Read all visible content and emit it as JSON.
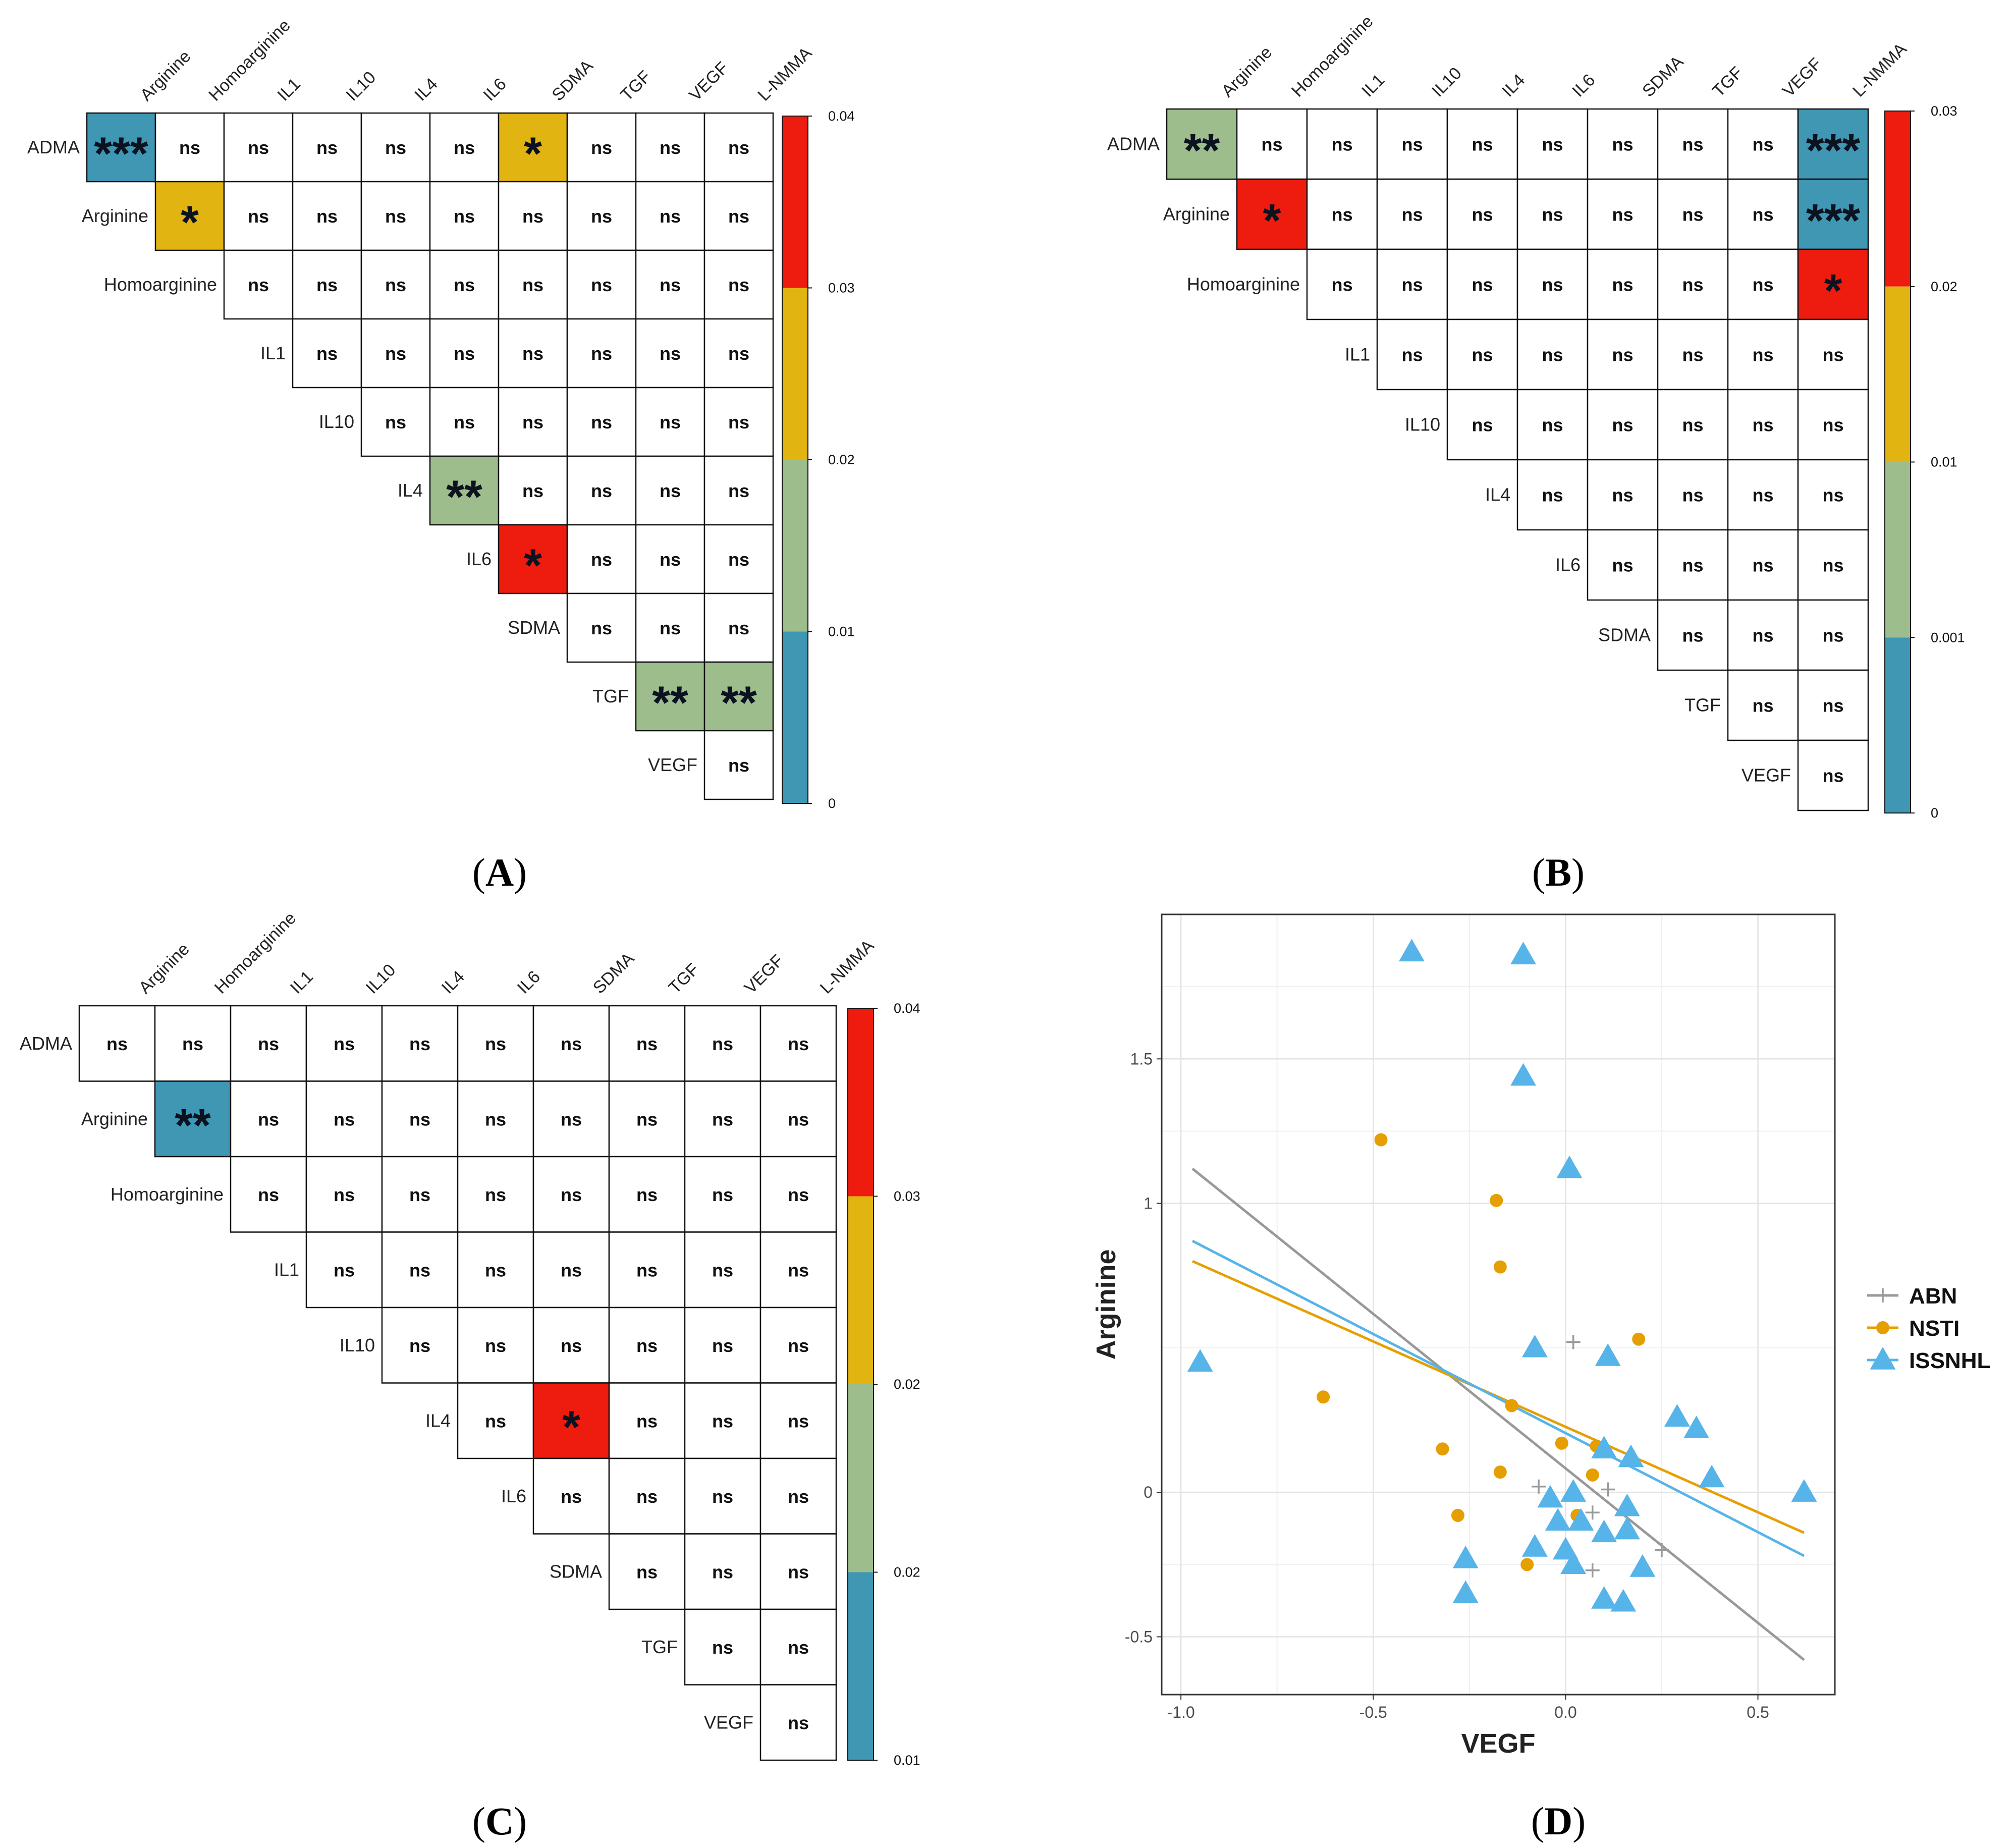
{
  "colors": {
    "teal": "#3f97b4",
    "green": "#9ebd8d",
    "yellow": "#e2b411",
    "red": "#ee1c0f",
    "abn": "#999999",
    "nsti": "#e69f00",
    "issnhl": "#56b4e9"
  },
  "chart_data": [
    {
      "type": "heatmap",
      "panel_label": "A",
      "columns": [
        "Arginine",
        "Homoarginine",
        "IL1",
        "IL10",
        "IL4",
        "IL6",
        "SDMA",
        "TGF",
        "VEGF",
        "L-NMMA"
      ],
      "rows": [
        "ADMA",
        "Arginine",
        "Homoarginine",
        "IL1",
        "IL10",
        "IL4",
        "IL6",
        "SDMA",
        "TGF",
        "VEGF"
      ],
      "cells": [
        [
          "***",
          "ns",
          "ns",
          "ns",
          "ns",
          "ns",
          "*",
          "ns",
          "ns",
          "ns"
        ],
        [
          "*",
          "ns",
          "ns",
          "ns",
          "ns",
          "ns",
          "ns",
          "ns",
          "ns"
        ],
        [
          "ns",
          "ns",
          "ns",
          "ns",
          "ns",
          "ns",
          "ns",
          "ns"
        ],
        [
          "ns",
          "ns",
          "ns",
          "ns",
          "ns",
          "ns",
          "ns"
        ],
        [
          "ns",
          "ns",
          "ns",
          "ns",
          "ns",
          "ns"
        ],
        [
          "**",
          "ns",
          "ns",
          "ns",
          "ns"
        ],
        [
          "*",
          "ns",
          "ns",
          "ns"
        ],
        [
          "ns",
          "ns",
          "ns"
        ],
        [
          "**",
          "**"
        ],
        [
          "ns"
        ]
      ],
      "fills": [
        [
          "teal",
          "",
          "",
          "",
          "",
          "",
          "yellow",
          "",
          "",
          ""
        ],
        [
          "yellow",
          "",
          "",
          "",
          "",
          "",
          "",
          "",
          ""
        ],
        [
          "",
          "",
          "",
          "",
          "",
          "",
          "",
          ""
        ],
        [
          "",
          "",
          "",
          "",
          "",
          "",
          ""
        ],
        [
          "",
          "",
          "",
          "",
          "",
          ""
        ],
        [
          "green",
          "",
          "",
          "",
          ""
        ],
        [
          "red",
          "",
          "",
          ""
        ],
        [
          "",
          "",
          ""
        ],
        [
          "green",
          "green"
        ],
        [
          ""
        ]
      ],
      "colorbar": {
        "ticks": [
          "0.04",
          "0.03",
          "0.02",
          "0.01",
          "0"
        ],
        "bands": [
          "red",
          "yellow",
          "green",
          "teal"
        ]
      }
    },
    {
      "type": "heatmap",
      "panel_label": "B",
      "columns": [
        "Arginine",
        "Homoarginine",
        "IL1",
        "IL10",
        "IL4",
        "IL6",
        "SDMA",
        "TGF",
        "VEGF",
        "L-NMMA"
      ],
      "rows": [
        "ADMA",
        "Arginine",
        "Homoarginine",
        "IL1",
        "IL10",
        "IL4",
        "IL6",
        "SDMA",
        "TGF",
        "VEGF"
      ],
      "cells": [
        [
          "**",
          "ns",
          "ns",
          "ns",
          "ns",
          "ns",
          "ns",
          "ns",
          "ns",
          "***"
        ],
        [
          "*",
          "ns",
          "ns",
          "ns",
          "ns",
          "ns",
          "ns",
          "ns",
          "***"
        ],
        [
          "ns",
          "ns",
          "ns",
          "ns",
          "ns",
          "ns",
          "ns",
          "*"
        ],
        [
          "ns",
          "ns",
          "ns",
          "ns",
          "ns",
          "ns",
          "ns"
        ],
        [
          "ns",
          "ns",
          "ns",
          "ns",
          "ns",
          "ns"
        ],
        [
          "ns",
          "ns",
          "ns",
          "ns",
          "ns"
        ],
        [
          "ns",
          "ns",
          "ns",
          "ns"
        ],
        [
          "ns",
          "ns",
          "ns"
        ],
        [
          "ns",
          "ns"
        ],
        [
          "ns"
        ]
      ],
      "fills": [
        [
          "green",
          "",
          "",
          "",
          "",
          "",
          "",
          "",
          "",
          "teal"
        ],
        [
          "red",
          "",
          "",
          "",
          "",
          "",
          "",
          "",
          "teal"
        ],
        [
          "",
          "",
          "",
          "",
          "",
          "",
          "",
          "red"
        ],
        [
          "",
          "",
          "",
          "",
          "",
          "",
          ""
        ],
        [
          "",
          "",
          "",
          "",
          "",
          ""
        ],
        [
          "",
          "",
          "",
          "",
          ""
        ],
        [
          "",
          "",
          "",
          ""
        ],
        [
          "",
          "",
          ""
        ],
        [
          "",
          ""
        ],
        [
          ""
        ]
      ],
      "colorbar": {
        "ticks": [
          "0.03",
          "0.02",
          "0.01",
          "0.001",
          "0"
        ],
        "bands": [
          "red",
          "yellow",
          "green",
          "teal"
        ]
      }
    },
    {
      "type": "heatmap",
      "panel_label": "C",
      "columns": [
        "Arginine",
        "Homoarginine",
        "IL1",
        "IL10",
        "IL4",
        "IL6",
        "SDMA",
        "TGF",
        "VEGF",
        "L-NMMA"
      ],
      "rows": [
        "ADMA",
        "Arginine",
        "Homoarginine",
        "IL1",
        "IL10",
        "IL4",
        "IL6",
        "SDMA",
        "TGF",
        "VEGF"
      ],
      "cells": [
        [
          "ns",
          "ns",
          "ns",
          "ns",
          "ns",
          "ns",
          "ns",
          "ns",
          "ns",
          "ns"
        ],
        [
          "**",
          "ns",
          "ns",
          "ns",
          "ns",
          "ns",
          "ns",
          "ns",
          "ns"
        ],
        [
          "ns",
          "ns",
          "ns",
          "ns",
          "ns",
          "ns",
          "ns",
          "ns"
        ],
        [
          "ns",
          "ns",
          "ns",
          "ns",
          "ns",
          "ns",
          "ns"
        ],
        [
          "ns",
          "ns",
          "ns",
          "ns",
          "ns",
          "ns"
        ],
        [
          "ns",
          "*",
          "ns",
          "ns",
          "ns"
        ],
        [
          "ns",
          "ns",
          "ns",
          "ns"
        ],
        [
          "ns",
          "ns",
          "ns"
        ],
        [
          "ns",
          "ns"
        ],
        [
          "ns"
        ]
      ],
      "fills": [
        [
          "",
          "",
          "",
          "",
          "",
          "",
          "",
          "",
          "",
          ""
        ],
        [
          "teal",
          "",
          "",
          "",
          "",
          "",
          "",
          "",
          ""
        ],
        [
          "",
          "",
          "",
          "",
          "",
          "",
          "",
          ""
        ],
        [
          "",
          "",
          "",
          "",
          "",
          "",
          ""
        ],
        [
          "",
          "",
          "",
          "",
          "",
          ""
        ],
        [
          "",
          "red",
          "",
          "",
          ""
        ],
        [
          "",
          "",
          "",
          ""
        ],
        [
          "",
          "",
          ""
        ],
        [
          "",
          ""
        ],
        [
          ""
        ]
      ],
      "colorbar": {
        "ticks": [
          "0.04",
          "0.03",
          "0.02",
          "0.02",
          "0.01"
        ],
        "bands": [
          "red",
          "yellow",
          "green",
          "teal"
        ]
      }
    },
    {
      "type": "scatter",
      "panel_label": "D",
      "xlabel": "VEGF",
      "ylabel": "Arginine",
      "xlim": [
        -1.05,
        0.7
      ],
      "ylim": [
        -0.7,
        2.0
      ],
      "x_ticks": [
        "-1.0",
        "-0.5",
        "0.0",
        "0.5"
      ],
      "x_tick_values": [
        -1.0,
        -0.5,
        0.0,
        0.5
      ],
      "y_ticks": [
        "-0.5",
        "0",
        "1",
        "1.5"
      ],
      "y_tick_values": [
        -0.5,
        0,
        1,
        1.5
      ],
      "grid": true,
      "legend": {
        "position": "right",
        "entries": [
          "ABN",
          "NSTI",
          "ISSNHL"
        ]
      },
      "series": [
        {
          "name": "ABN",
          "marker": "plus",
          "color": "abn",
          "points": [
            [
              0.02,
              0.52
            ],
            [
              0.11,
              0.01
            ],
            [
              0.07,
              -0.07
            ],
            [
              -0.07,
              0.02
            ],
            [
              0.07,
              -0.27
            ],
            [
              0.25,
              -0.2
            ]
          ],
          "fit": [
            [
              -0.97,
              1.12
            ],
            [
              0.62,
              -0.58
            ]
          ]
        },
        {
          "name": "NSTI",
          "marker": "circle",
          "color": "nsti",
          "points": [
            [
              -0.48,
              1.22
            ],
            [
              -0.18,
              1.01
            ],
            [
              -0.17,
              0.78
            ],
            [
              0.19,
              0.53
            ],
            [
              -0.63,
              0.33
            ],
            [
              -0.32,
              0.15
            ],
            [
              -0.28,
              -0.08
            ],
            [
              -0.17,
              0.07
            ],
            [
              -0.14,
              0.3
            ],
            [
              -0.01,
              0.17
            ],
            [
              0.08,
              0.16
            ],
            [
              0.07,
              0.06
            ],
            [
              0.03,
              -0.08
            ],
            [
              -0.1,
              -0.25
            ]
          ],
          "fit": [
            [
              -0.97,
              0.8
            ],
            [
              0.62,
              -0.14
            ]
          ]
        },
        {
          "name": "ISSNHL",
          "marker": "triangle",
          "color": "issnhl",
          "points": [
            [
              -0.4,
              1.87
            ],
            [
              -0.11,
              1.86
            ],
            [
              -0.11,
              1.44
            ],
            [
              0.01,
              1.12
            ],
            [
              -0.95,
              0.45
            ],
            [
              -0.08,
              0.5
            ],
            [
              0.11,
              0.47
            ],
            [
              0.29,
              0.26
            ],
            [
              0.34,
              0.22
            ],
            [
              0.38,
              0.05
            ],
            [
              0.62,
              0.0
            ],
            [
              0.1,
              0.15
            ],
            [
              0.17,
              0.12
            ],
            [
              -0.04,
              -0.02
            ],
            [
              0.02,
              0.0
            ],
            [
              -0.02,
              -0.1
            ],
            [
              0.04,
              -0.1
            ],
            [
              0.16,
              -0.05
            ],
            [
              0.1,
              -0.14
            ],
            [
              0.16,
              -0.13
            ],
            [
              -0.08,
              -0.19
            ],
            [
              0.0,
              -0.2
            ],
            [
              0.02,
              -0.25
            ],
            [
              0.2,
              -0.26
            ],
            [
              -0.26,
              -0.23
            ],
            [
              -0.26,
              -0.35
            ],
            [
              0.1,
              -0.37
            ],
            [
              0.15,
              -0.38
            ]
          ],
          "fit": [
            [
              -0.97,
              0.87
            ],
            [
              0.62,
              -0.22
            ]
          ]
        }
      ]
    }
  ]
}
